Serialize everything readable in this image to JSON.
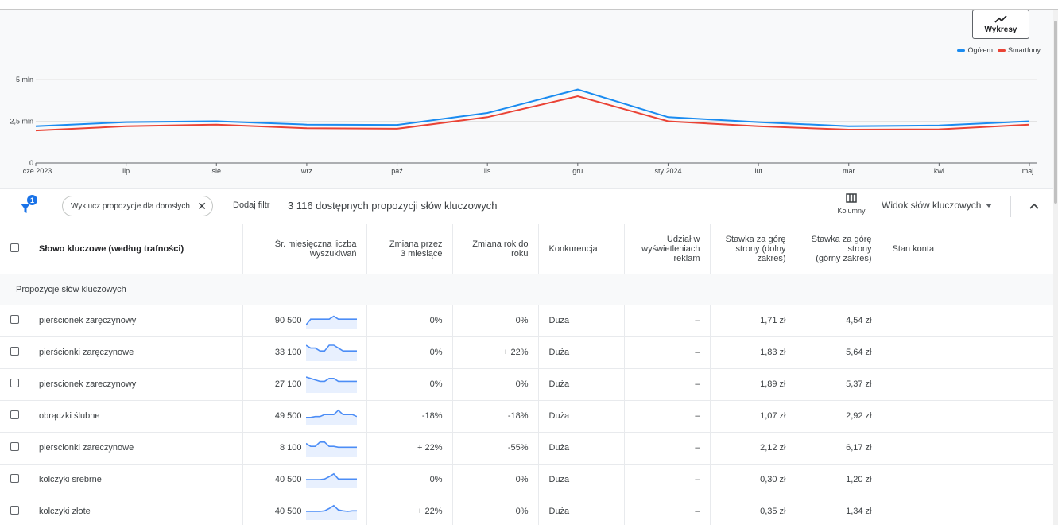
{
  "chart_button": {
    "label": "Wykresy",
    "icon": "trend-icon"
  },
  "chart_data": {
    "type": "line",
    "x": [
      "cze 2023",
      "lip",
      "sie",
      "wrz",
      "paź",
      "lis",
      "gru",
      "sty 2024",
      "lut",
      "mar",
      "kwi",
      "maj"
    ],
    "series": [
      {
        "name": "Ogółem",
        "color": "#1a8bf0",
        "values": [
          2.2,
          2.45,
          2.5,
          2.3,
          2.28,
          3.0,
          4.4,
          2.75,
          2.45,
          2.2,
          2.25,
          2.5
        ]
      },
      {
        "name": "Smartfony",
        "color": "#ea4335",
        "values": [
          1.95,
          2.2,
          2.3,
          2.08,
          2.05,
          2.75,
          4.0,
          2.5,
          2.2,
          2.0,
          2.02,
          2.3
        ]
      }
    ],
    "yticks": [
      {
        "value": 5,
        "label": "5 mln"
      },
      {
        "value": 2.5,
        "label": "2,5 mln"
      },
      {
        "value": 0,
        "label": "0"
      }
    ],
    "ylim": [
      0,
      5
    ],
    "grid": true,
    "legend_position": "top-right"
  },
  "filter_bar": {
    "filter_badge": "1",
    "chip_label": "Wyklucz propozycje dla dorosłych",
    "add_filter": "Dodaj filtr",
    "available": "3 116 dostępnych propozycji słów kluczowych",
    "columns_label": "Kolumny",
    "view_label": "Widok słów kluczowych"
  },
  "table": {
    "headers": {
      "keyword": "Słowo kluczowe (według trafności)",
      "avg_searches": [
        "Śr. miesięczna liczba",
        "wyszukiwań"
      ],
      "change_3m": [
        "Zmiana przez",
        "3 miesiące"
      ],
      "change_yoy": [
        "Zmiana rok do",
        "roku"
      ],
      "competition": "Konkurencja",
      "impression_share": [
        "Udział w",
        "wyświetleniach",
        "reklam"
      ],
      "bid_low": [
        "Stawka za górę",
        "strony (dolny",
        "zakres)"
      ],
      "bid_high": [
        "Stawka za górę",
        "strony",
        "(górny zakres)"
      ],
      "account_status": "Stan konta"
    },
    "group_label": "Propozycje słów kluczowych",
    "rows": [
      {
        "keyword": "pierścionek zaręczynowy",
        "avg": "90 500",
        "trend": [
          1,
          3,
          3,
          3,
          3,
          3,
          4,
          3,
          3,
          3,
          3,
          3
        ],
        "change_3m": "0%",
        "change_yoy": "0%",
        "competition": "Duża",
        "share": "–",
        "bid_low": "1,71 zł",
        "bid_high": "4,54 zł"
      },
      {
        "keyword": "pierścionki zaręczynowe",
        "avg": "33 100",
        "trend": [
          5,
          4,
          4,
          3,
          3,
          5,
          5,
          4,
          3,
          3,
          3,
          3
        ],
        "change_3m": "0%",
        "change_yoy": "+ 22%",
        "competition": "Duża",
        "share": "–",
        "bid_low": "1,83 zł",
        "bid_high": "5,64 zł"
      },
      {
        "keyword": "pierscionek zareczynowy",
        "avg": "27 100",
        "trend": [
          5,
          4.5,
          4,
          3.5,
          3.5,
          4.5,
          4.5,
          3.5,
          3.5,
          3.5,
          3.5,
          3.5
        ],
        "change_3m": "0%",
        "change_yoy": "0%",
        "competition": "Duża",
        "share": "–",
        "bid_low": "1,89 zł",
        "bid_high": "5,37 zł"
      },
      {
        "keyword": "obrączki ślubne",
        "avg": "49 500",
        "trend": [
          2,
          2,
          2.3,
          2.3,
          3,
          3,
          3,
          4.5,
          3,
          3,
          3,
          2.3
        ],
        "change_3m": "-18%",
        "change_yoy": "-18%",
        "competition": "Duża",
        "share": "–",
        "bid_low": "1,07 zł",
        "bid_high": "2,92 zł"
      },
      {
        "keyword": "pierscionki zareczynowe",
        "avg": "8 100",
        "trend": [
          4,
          3,
          3,
          4.5,
          4.5,
          3,
          3,
          2.7,
          2.7,
          2.7,
          2.7,
          2.7
        ],
        "change_3m": "+ 22%",
        "change_yoy": "-55%",
        "competition": "Duża",
        "share": "–",
        "bid_low": "2,12 zł",
        "bid_high": "6,17 zł"
      },
      {
        "keyword": "kolczyki srebrne",
        "avg": "40 500",
        "trend": [
          2.5,
          2.5,
          2.5,
          2.5,
          2.7,
          3.5,
          4.5,
          2.7,
          2.7,
          2.7,
          2.7,
          2.7
        ],
        "change_3m": "0%",
        "change_yoy": "0%",
        "competition": "Duża",
        "share": "–",
        "bid_low": "0,30 zł",
        "bid_high": "1,20 zł"
      },
      {
        "keyword": "kolczyki złote",
        "avg": "40 500",
        "trend": [
          2.5,
          2.5,
          2.5,
          2.5,
          2.7,
          3.5,
          4.5,
          3,
          2.7,
          2.5,
          2.7,
          2.7
        ],
        "change_3m": "+ 22%",
        "change_yoy": "0%",
        "competition": "Duża",
        "share": "–",
        "bid_low": "0,35 zł",
        "bid_high": "1,34 zł"
      }
    ]
  }
}
